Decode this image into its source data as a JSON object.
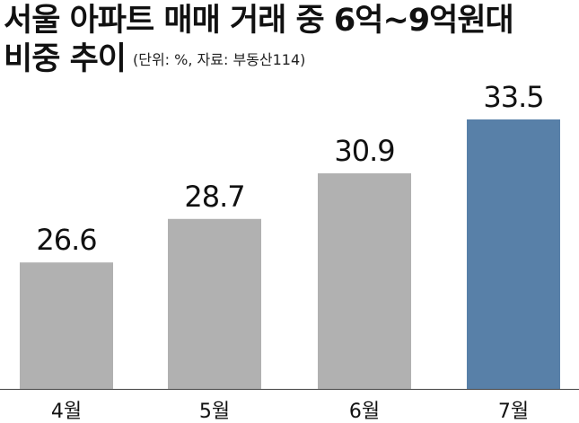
{
  "title_line1": "서울 아파트 매매 거래 중 6억~9억원대",
  "title_line2": "비중 추이",
  "unit_note": "(단위: %, 자료: 부동산114)",
  "colors": {
    "default_bar": "#b1b1b1",
    "highlight_bar": "#5880a8",
    "axis_line": "#444444"
  },
  "chart_data": {
    "type": "bar",
    "title": "서울 아파트 매매 거래 중 6억~9억원대 비중 추이",
    "subtitle": "(단위: %, 자료: 부동산114)",
    "categories": [
      "4월",
      "5월",
      "6월",
      "7월"
    ],
    "values": [
      26.6,
      28.7,
      30.9,
      33.5
    ],
    "value_labels": [
      "26.6",
      "28.7",
      "30.9",
      "33.5"
    ],
    "highlight_index": 3,
    "xlabel": "",
    "ylabel": "",
    "ylim": [
      20.5,
      33.5
    ],
    "grid": false,
    "legend": "none"
  }
}
